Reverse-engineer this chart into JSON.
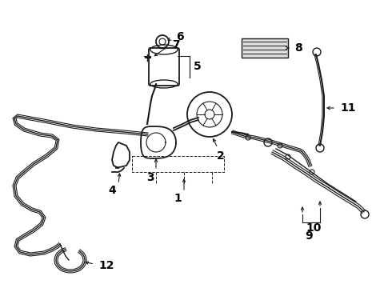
{
  "bg_color": "#ffffff",
  "line_color": "#1a1a1a",
  "label_color": "#000000",
  "fig_width": 4.9,
  "fig_height": 3.6,
  "dpi": 100,
  "label_fontsize": 10,
  "arrow_lw": 0.8,
  "hose_lw": 1.1,
  "part_lw": 1.3
}
